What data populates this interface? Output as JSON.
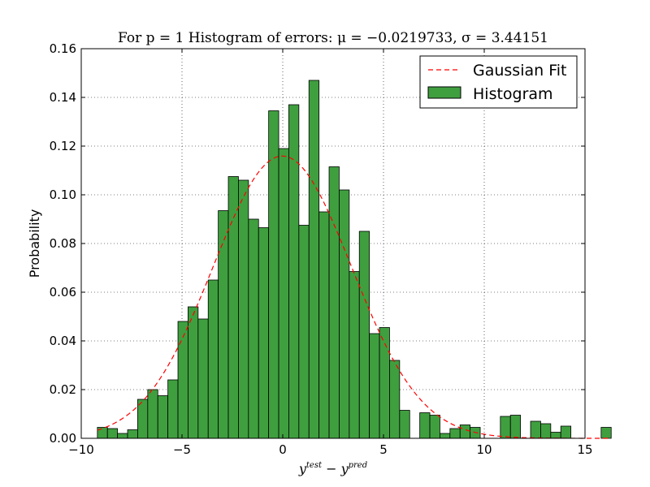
{
  "chart_data": {
    "type": "bar",
    "title": "For p = 1 Histogram of errors: μ = −0.0219733, σ = 3.44151",
    "xlabel": "y^test − y^pred",
    "xlabel_parts": {
      "base1": "y",
      "sup1": "test",
      "op": " − ",
      "base2": "y",
      "sup2": "pred"
    },
    "ylabel": "Probability",
    "xlim": [
      -10,
      15
    ],
    "ylim": [
      0,
      0.16
    ],
    "x_ticks": [
      "−10",
      "−5",
      "0",
      "5",
      "10",
      "15"
    ],
    "x_tick_values": [
      -10,
      -5,
      0,
      5,
      10,
      15
    ],
    "y_ticks": [
      "0.00",
      "0.02",
      "0.04",
      "0.06",
      "0.08",
      "0.10",
      "0.12",
      "0.14",
      "0.16"
    ],
    "y_tick_values": [
      0,
      0.02,
      0.04,
      0.06,
      0.08,
      0.1,
      0.12,
      0.14,
      0.16
    ],
    "grid": true,
    "legend_position": "top-right",
    "legend": [
      "Gaussian Fit",
      "Histogram"
    ],
    "histogram": {
      "name": "Histogram",
      "color": "#3f9f3f",
      "bin_start": -9.2,
      "bin_width": 0.5,
      "values": [
        0.0045,
        0.004,
        0.002,
        0.0035,
        0.016,
        0.02,
        0.0175,
        0.024,
        0.048,
        0.054,
        0.049,
        0.065,
        0.0935,
        0.1075,
        0.106,
        0.09,
        0.0865,
        0.1345,
        0.119,
        0.137,
        0.0875,
        0.147,
        0.093,
        0.1115,
        0.102,
        0.0685,
        0.085,
        0.043,
        0.0455,
        0.032,
        0.0115,
        0.0,
        0.0105,
        0.0095,
        0.002,
        0.004,
        0.0055,
        0.0045,
        0.0,
        0.0,
        0.009,
        0.0095,
        0.0,
        0.007,
        0.006,
        0.0025,
        0.005,
        0.0,
        0.0,
        0.0,
        0.0045
      ]
    },
    "gaussian_fit": {
      "name": "Gaussian Fit",
      "color": "#ff0000",
      "mu": -0.0219733,
      "sigma": 3.44151
    }
  }
}
